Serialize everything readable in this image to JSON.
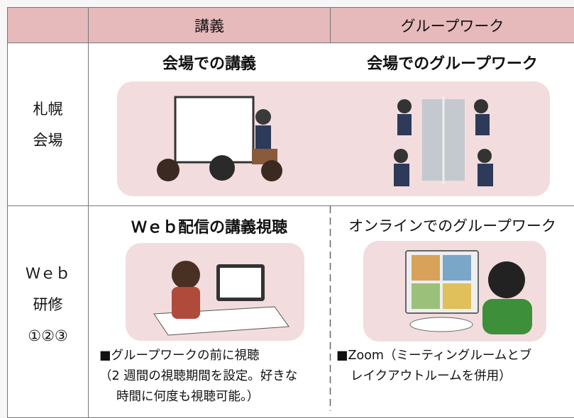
{
  "table": {
    "header": [
      "講義",
      "グループワーク"
    ],
    "rows": [
      {
        "label": [
          "札幌",
          "会場"
        ],
        "cells": [
          {
            "title": "会場での講義"
          },
          {
            "title": "会場でのグループワーク"
          }
        ]
      },
      {
        "label": [
          "Ｗｅｂ",
          "研修",
          "①②③"
        ],
        "cells": [
          {
            "title": "Ｗｅｂ配信の講義視聴",
            "note": [
              "■グループワークの前に視聴",
              "（2 週間の視聴期間を設定。好きな",
              "時間に何度も視聴可能。）"
            ]
          },
          {
            "title": "オンラインでのグループワーク",
            "note": [
              "■Zoom（ミーティングルームとブ",
              "レイクアウトルームを併用）"
            ]
          }
        ]
      }
    ]
  }
}
